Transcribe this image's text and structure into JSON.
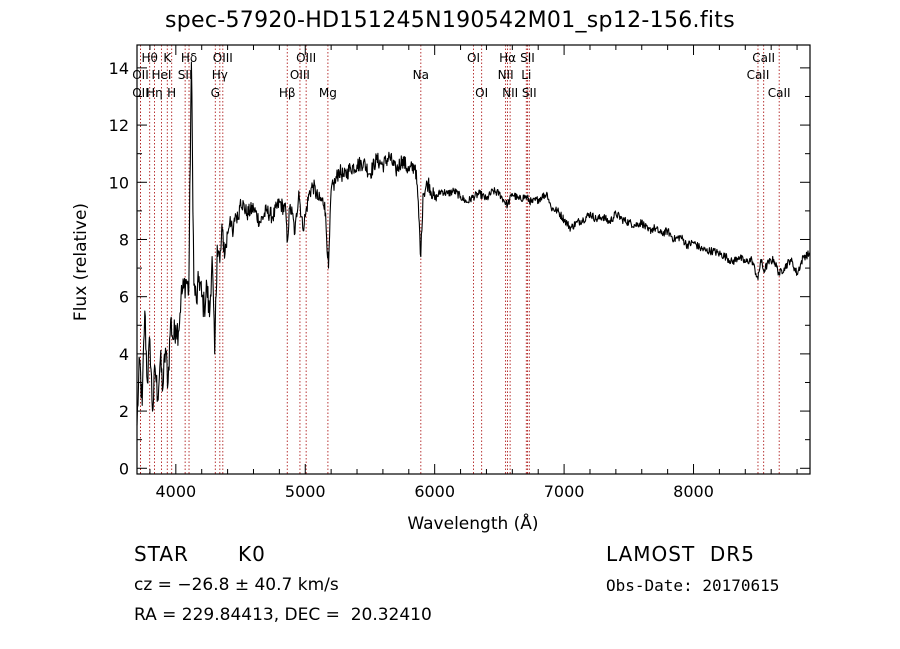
{
  "title": "spec-57920-HD151245N190542M01_sp12-156.fits",
  "info": {
    "object": "STAR",
    "subclass": "K0",
    "survey": "LAMOST  DR5",
    "cz": "cz = −26.8 ± 40.7 km/s",
    "obs_date": "Obs-Date: 20170615",
    "coords": "RA = 229.84413, DEC =  20.32410"
  },
  "chart_data": {
    "type": "line",
    "title": "spec-57920-HD151245N190542M01_sp12-156.fits",
    "xlabel": "Wavelength (Å)",
    "ylabel": "Flux (relative)",
    "xlim": [
      3700,
      8900
    ],
    "ylim": [
      -0.2,
      14.8
    ],
    "xticks": [
      4000,
      5000,
      6000,
      7000,
      8000
    ],
    "yticks": [
      0,
      2,
      4,
      6,
      8,
      10,
      12,
      14
    ],
    "grid": false,
    "line_color": "#000000",
    "marker_line_color": "#b02020",
    "spectrum": {
      "x": [
        3700,
        3720,
        3740,
        3760,
        3780,
        3800,
        3820,
        3840,
        3860,
        3880,
        3900,
        3920,
        3940,
        3960,
        3980,
        4000,
        4020,
        4040,
        4060,
        4080,
        4100,
        4120,
        4140,
        4160,
        4180,
        4200,
        4220,
        4240,
        4260,
        4280,
        4300,
        4320,
        4340,
        4360,
        4380,
        4400,
        4420,
        4440,
        4460,
        4480,
        4500,
        4550,
        4600,
        4650,
        4700,
        4750,
        4800,
        4850,
        4860,
        4880,
        4900,
        4920,
        4950,
        4980,
        5000,
        5030,
        5060,
        5100,
        5150,
        5180,
        5200,
        5230,
        5260,
        5300,
        5350,
        5400,
        5450,
        5500,
        5550,
        5600,
        5650,
        5700,
        5750,
        5800,
        5850,
        5870,
        5893,
        5910,
        5950,
        6000,
        6050,
        6100,
        6150,
        6200,
        6250,
        6300,
        6350,
        6400,
        6450,
        6500,
        6530,
        6563,
        6600,
        6650,
        6700,
        6750,
        6800,
        6830,
        6870,
        6900,
        6950,
        7000,
        7050,
        7100,
        7150,
        7200,
        7250,
        7300,
        7350,
        7400,
        7450,
        7500,
        7550,
        7600,
        7650,
        7700,
        7750,
        7800,
        7850,
        7900,
        7950,
        8000,
        8050,
        8100,
        8150,
        8200,
        8250,
        8300,
        8350,
        8400,
        8450,
        8498,
        8520,
        8542,
        8580,
        8620,
        8662,
        8700,
        8750,
        8800,
        8850,
        8900
      ],
      "y": [
        1.5,
        3.8,
        2.2,
        5.5,
        3.0,
        4.5,
        2.0,
        3.5,
        2.5,
        3.8,
        2.8,
        4.2,
        3.0,
        5.2,
        4.5,
        5.0,
        4.8,
        6.0,
        6.3,
        6.6,
        6.2,
        14.2,
        6.4,
        5.8,
        6.7,
        6.0,
        5.6,
        6.4,
        5.3,
        7.4,
        4.0,
        7.8,
        7.2,
        8.3,
        7.5,
        8.2,
        8.8,
        8.1,
        8.9,
        8.7,
        9.4,
        8.9,
        9.1,
        8.6,
        9.0,
        8.8,
        9.3,
        9.0,
        7.9,
        9.1,
        8.9,
        8.2,
        9.7,
        8.4,
        8.8,
        9.6,
        9.9,
        9.4,
        9.3,
        7.0,
        9.7,
        10.0,
        10.4,
        10.2,
        10.5,
        10.6,
        10.7,
        10.3,
        10.8,
        10.6,
        10.9,
        10.4,
        10.8,
        10.4,
        10.6,
        9.5,
        7.4,
        9.6,
        10.0,
        9.4,
        9.7,
        9.6,
        9.7,
        9.5,
        9.3,
        9.5,
        9.6,
        9.4,
        9.7,
        9.6,
        9.4,
        9.2,
        9.6,
        9.4,
        9.5,
        9.3,
        9.4,
        9.5,
        9.6,
        9.1,
        9.0,
        8.7,
        8.4,
        8.6,
        8.7,
        8.9,
        8.7,
        8.8,
        8.6,
        8.9,
        8.7,
        8.6,
        8.5,
        8.6,
        8.3,
        8.4,
        8.2,
        8.3,
        8.0,
        8.1,
        7.8,
        7.9,
        7.7,
        7.6,
        7.6,
        7.5,
        7.4,
        7.2,
        7.4,
        7.2,
        7.3,
        6.6,
        7.3,
        6.9,
        7.2,
        7.3,
        6.8,
        7.0,
        7.3,
        6.8,
        7.4,
        7.5
      ]
    },
    "line_markers": [
      {
        "label": "Hθ",
        "x": 3798,
        "row": 0
      },
      {
        "label": "K",
        "x": 3934,
        "row": 0
      },
      {
        "label": "Hδ",
        "x": 4102,
        "row": 0
      },
      {
        "label": "OII",
        "x": 3727,
        "row": 1
      },
      {
        "label": "HeI",
        "x": 3889,
        "row": 1
      },
      {
        "label": "SII",
        "x": 4072,
        "row": 1
      },
      {
        "label": "OII",
        "x": 3727,
        "row": 2
      },
      {
        "label": "Hη",
        "x": 3835,
        "row": 2
      },
      {
        "label": "H",
        "x": 3968,
        "row": 2
      },
      {
        "label": "OIII",
        "x": 4363,
        "row": 0
      },
      {
        "label": "Hγ",
        "x": 4340,
        "row": 1
      },
      {
        "label": "G",
        "x": 4305,
        "row": 2
      },
      {
        "label": "OIII",
        "x": 5007,
        "row": 0
      },
      {
        "label": "OIII",
        "x": 4959,
        "row": 1
      },
      {
        "label": "Hβ",
        "x": 4861,
        "row": 2
      },
      {
        "label": "Mg",
        "x": 5175,
        "row": 2
      },
      {
        "label": "Na",
        "x": 5893,
        "row": 1
      },
      {
        "label": "OI",
        "x": 6300,
        "row": 0
      },
      {
        "label": "OI",
        "x": 6363,
        "row": 2
      },
      {
        "label": "Hα",
        "x": 6563,
        "row": 0
      },
      {
        "label": "NII",
        "x": 6548,
        "row": 1
      },
      {
        "label": "NII",
        "x": 6583,
        "row": 2
      },
      {
        "label": "SII",
        "x": 6717,
        "row": 0
      },
      {
        "label": "Li",
        "x": 6708,
        "row": 1
      },
      {
        "label": "SII",
        "x": 6731,
        "row": 2
      },
      {
        "label": "CaII",
        "x": 8542,
        "row": 0
      },
      {
        "label": "CaII",
        "x": 8498,
        "row": 1
      },
      {
        "label": "CaII",
        "x": 8662,
        "row": 2
      }
    ]
  }
}
